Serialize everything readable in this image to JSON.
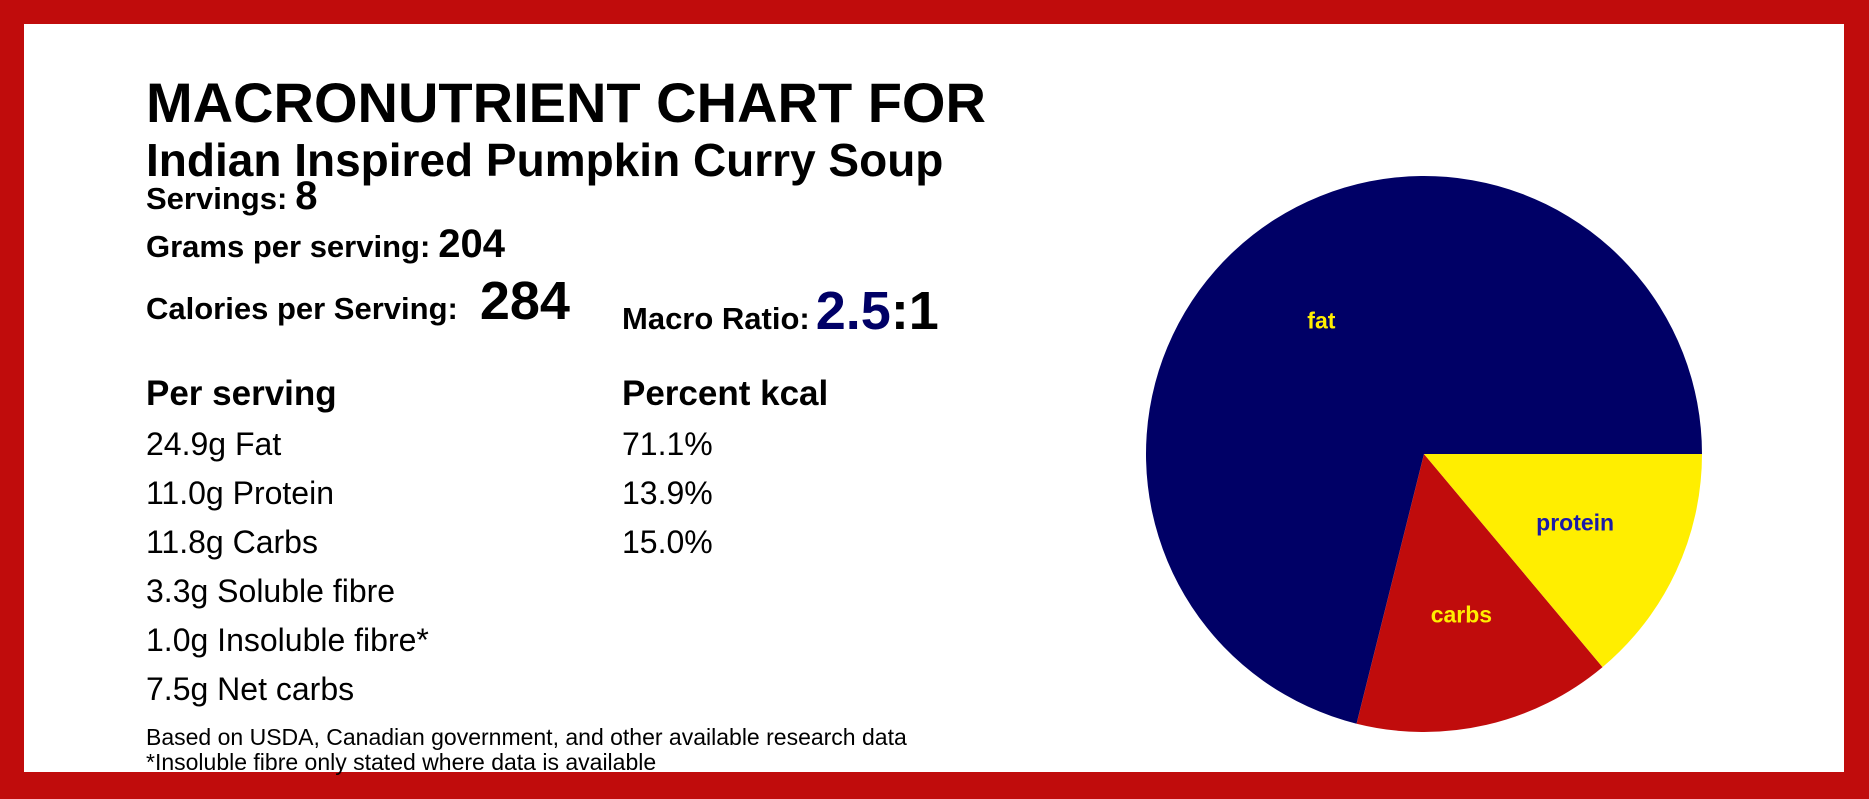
{
  "header": {
    "title_line1": "MACRONUTRIENT CHART FOR",
    "title_line2": "Indian Inspired Pumpkin Curry Soup"
  },
  "stats": {
    "servings_label": "Servings:",
    "servings_value": "8",
    "grams_label": "Grams per serving:",
    "grams_value": "204",
    "calories_label": "Calories per Serving:",
    "calories_value": "284",
    "ratio_label": "Macro Ratio:",
    "ratio_value_a": "2.5",
    "ratio_value_b": ":1"
  },
  "table": {
    "col1_header": "Per serving",
    "col2_header": "Percent kcal",
    "rows": [
      {
        "amount": "24.9g Fat",
        "percent": "71.1%"
      },
      {
        "amount": "11.0g Protein",
        "percent": "13.9%"
      },
      {
        "amount": "11.8g Carbs",
        "percent": "15.0%"
      },
      {
        "amount": "3.3g Soluble fibre",
        "percent": ""
      },
      {
        "amount": "1.0g Insoluble fibre*",
        "percent": ""
      },
      {
        "amount": "7.5g Net carbs",
        "percent": ""
      }
    ]
  },
  "notes": {
    "line1": "Based on USDA, Canadian government, and other available research data",
    "line2": "*Insoluble fibre only stated where data is available"
  },
  "colors": {
    "border": "#c00c0c",
    "fat": "#000066",
    "protein": "#ffee00",
    "carbs": "#c00c0c",
    "fat_label": "#ffee00",
    "protein_label": "#1a1aa8",
    "carbs_label": "#ffee00"
  },
  "chart_data": {
    "type": "pie",
    "title": "",
    "slices": [
      {
        "label": "fat",
        "value": 71.1
      },
      {
        "label": "carbs",
        "value": 15.0
      },
      {
        "label": "protein",
        "value": 13.9
      }
    ]
  }
}
